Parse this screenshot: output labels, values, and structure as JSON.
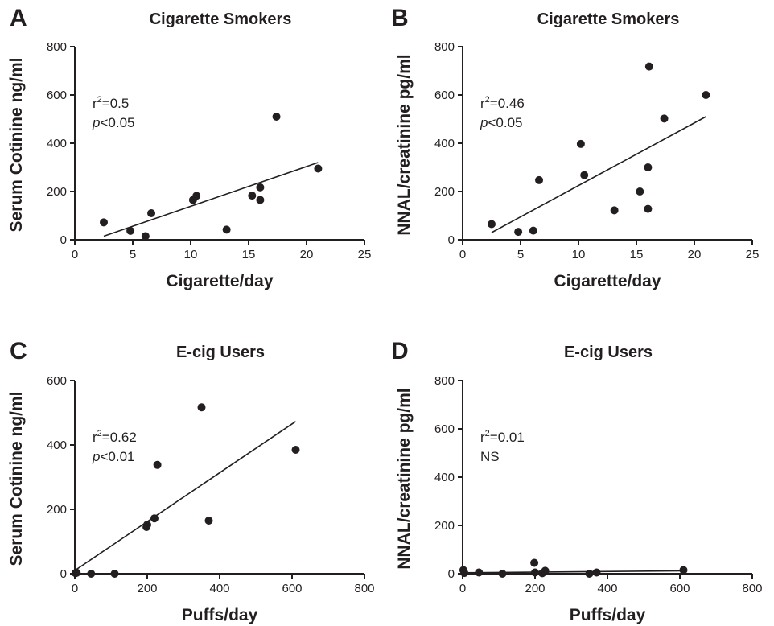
{
  "chart_data": [
    {
      "panel": "A",
      "type": "scatter",
      "title": "Cigarette Smokers",
      "xlabel": "Cigarette/day",
      "ylabel": "Serum Cotinine ng/ml",
      "xlim": [
        0,
        25
      ],
      "ylim": [
        0,
        800
      ],
      "xticks": [
        0,
        5,
        10,
        15,
        20,
        25
      ],
      "yticks": [
        0,
        200,
        400,
        600,
        800
      ],
      "stats": {
        "r2_prefix": "r",
        "r2_sup": "2",
        "r2_value": "=0.5",
        "p_symbol": "p",
        "p_value": "<0.05"
      },
      "points": [
        {
          "x": 2.5,
          "y": 72
        },
        {
          "x": 4.8,
          "y": 37
        },
        {
          "x": 6.1,
          "y": 15
        },
        {
          "x": 6.6,
          "y": 110
        },
        {
          "x": 10.2,
          "y": 165
        },
        {
          "x": 10.5,
          "y": 182
        },
        {
          "x": 13.1,
          "y": 42
        },
        {
          "x": 15.3,
          "y": 183
        },
        {
          "x": 16.0,
          "y": 217
        },
        {
          "x": 16.0,
          "y": 165
        },
        {
          "x": 17.4,
          "y": 510
        },
        {
          "x": 21.0,
          "y": 295
        }
      ],
      "fit": {
        "x": [
          2.5,
          21.0
        ],
        "y": [
          15,
          320
        ]
      }
    },
    {
      "panel": "B",
      "type": "scatter",
      "title": "Cigarette Smokers",
      "xlabel": "Cigarette/day",
      "ylabel": "NNAL/creatinine pg/ml",
      "xlim": [
        0,
        25
      ],
      "ylim": [
        0,
        800
      ],
      "xticks": [
        0,
        5,
        10,
        15,
        20,
        25
      ],
      "yticks": [
        0,
        200,
        400,
        600,
        800
      ],
      "stats": {
        "r2_prefix": "r",
        "r2_sup": "2",
        "r2_value": "=0.46",
        "p_symbol": "p",
        "p_value": "<0.05"
      },
      "points": [
        {
          "x": 2.5,
          "y": 65
        },
        {
          "x": 4.8,
          "y": 33
        },
        {
          "x": 6.1,
          "y": 38
        },
        {
          "x": 6.6,
          "y": 247
        },
        {
          "x": 10.2,
          "y": 397
        },
        {
          "x": 10.5,
          "y": 268
        },
        {
          "x": 13.1,
          "y": 122
        },
        {
          "x": 15.3,
          "y": 200
        },
        {
          "x": 16.0,
          "y": 300
        },
        {
          "x": 16.0,
          "y": 128
        },
        {
          "x": 16.1,
          "y": 718
        },
        {
          "x": 17.4,
          "y": 502
        },
        {
          "x": 21.0,
          "y": 600
        }
      ],
      "fit": {
        "x": [
          2.5,
          21.0
        ],
        "y": [
          30,
          510
        ]
      }
    },
    {
      "panel": "C",
      "type": "scatter",
      "title": "E-cig Users",
      "xlabel": "Puffs/day",
      "ylabel": "Serum Cotinine ng/ml",
      "xlim": [
        0,
        800
      ],
      "ylim": [
        0,
        600
      ],
      "xticks": [
        0,
        200,
        400,
        600,
        800
      ],
      "yticks": [
        0,
        200,
        400,
        600
      ],
      "stats": {
        "r2_prefix": "r",
        "r2_sup": "2",
        "r2_value": "=0.62",
        "p_symbol": "p",
        "p_value": "<0.01"
      },
      "points": [
        {
          "x": 2,
          "y": 2
        },
        {
          "x": 5,
          "y": 3
        },
        {
          "x": 45,
          "y": 0
        },
        {
          "x": 110,
          "y": 0
        },
        {
          "x": 198,
          "y": 145
        },
        {
          "x": 200,
          "y": 152
        },
        {
          "x": 220,
          "y": 172
        },
        {
          "x": 228,
          "y": 338
        },
        {
          "x": 350,
          "y": 517
        },
        {
          "x": 370,
          "y": 165
        },
        {
          "x": 610,
          "y": 385
        }
      ],
      "fit": {
        "x": [
          0,
          610
        ],
        "y": [
          10,
          473
        ]
      }
    },
    {
      "panel": "D",
      "type": "scatter",
      "title": "E-cig Users",
      "xlabel": "Puffs/day",
      "ylabel": "NNAL/creatinine pg/ml",
      "xlim": [
        0,
        800
      ],
      "ylim": [
        0,
        800
      ],
      "xticks": [
        0,
        200,
        400,
        600,
        800
      ],
      "yticks": [
        0,
        200,
        400,
        600,
        800
      ],
      "stats": {
        "r2_prefix": "r",
        "r2_sup": "2",
        "r2_value": "=0.01",
        "p_symbol": "",
        "p_value": "NS"
      },
      "points": [
        {
          "x": 2,
          "y": 15
        },
        {
          "x": 5,
          "y": 3
        },
        {
          "x": 45,
          "y": 5
        },
        {
          "x": 110,
          "y": 0
        },
        {
          "x": 198,
          "y": 45
        },
        {
          "x": 200,
          "y": 5
        },
        {
          "x": 220,
          "y": 2
        },
        {
          "x": 228,
          "y": 12
        },
        {
          "x": 350,
          "y": 0
        },
        {
          "x": 370,
          "y": 5
        },
        {
          "x": 610,
          "y": 15
        }
      ],
      "fit": {
        "x": [
          0,
          610
        ],
        "y": [
          4,
          12
        ]
      }
    }
  ]
}
